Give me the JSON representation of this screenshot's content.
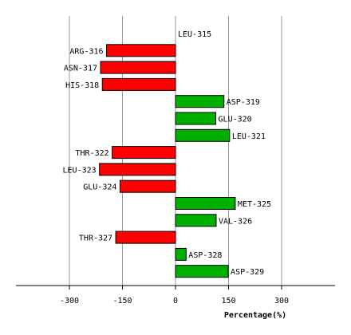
{
  "chart_data": {
    "type": "bar",
    "orientation": "horizontal",
    "title": "",
    "xlabel": "Percentage(%)",
    "ylabel": "",
    "xlim": [
      -300,
      300
    ],
    "xticks": [
      -300,
      -150,
      0,
      150,
      300
    ],
    "grid": true,
    "categories": [
      "LEU-315",
      "ARG-316",
      "ASN-317",
      "HIS-318",
      "ASP-319",
      "GLU-320",
      "LEU-321",
      "THR-322",
      "LEU-323",
      "GLU-324",
      "MET-325",
      "VAL-326",
      "THR-327",
      "ASP-328",
      "ASP-329"
    ],
    "values": [
      0,
      -195,
      -212,
      -207,
      137,
      114,
      153,
      -179,
      -215,
      -157,
      169,
      115,
      -169,
      30,
      149
    ],
    "colors": {
      "positive": "#00b000",
      "negative": "#ff0000",
      "grid": "#999999",
      "border": "#000000"
    }
  }
}
